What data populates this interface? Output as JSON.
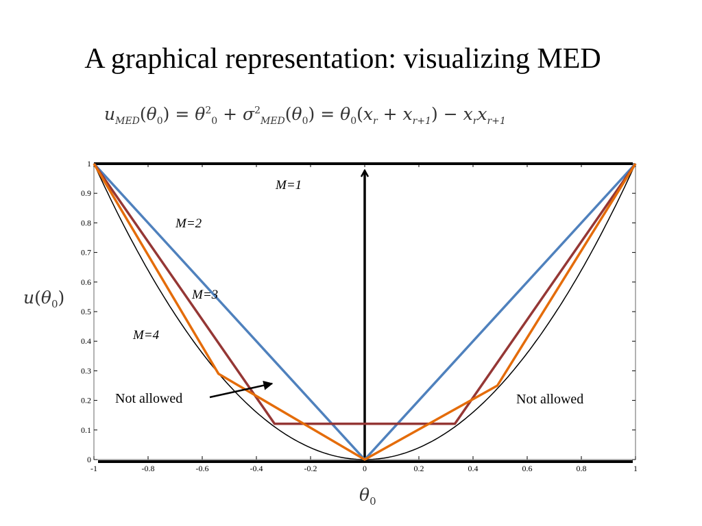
{
  "slide": {
    "title": "A graphical representation: visualizing MED"
  },
  "formula": {
    "lhs_u": "u",
    "lhs_sub": "MED",
    "theta": "θ",
    "zero": "0",
    "sigma": "σ",
    "sq": "2",
    "x": "x",
    "r": "r",
    "r1": "r+1"
  },
  "axes": {
    "ylabel_func": "u",
    "ylabel_theta": "θ",
    "ylabel_sub": "0",
    "xlabel_theta": "θ",
    "xlabel_sub": "0"
  },
  "chart_data": {
    "type": "line",
    "title": "",
    "xlim": [
      -1,
      1
    ],
    "ylim": [
      0,
      1
    ],
    "x_ticks": [
      -1,
      -0.8,
      -0.6,
      -0.4,
      -0.2,
      0,
      0.2,
      0.4,
      0.6,
      0.8,
      1
    ],
    "x_tick_labels": [
      "-1",
      "-0.8",
      "-0.6",
      "-0.4",
      "-0.2",
      "0",
      "0.2",
      "0.4",
      "0.6",
      "0.8",
      "1"
    ],
    "y_ticks": [
      0,
      0.1,
      0.2,
      0.3,
      0.4,
      0.5,
      0.6,
      0.7,
      0.8,
      0.9,
      1
    ],
    "y_tick_labels": [
      "0",
      "0.1",
      "0.2",
      "0.3",
      "0.4",
      "0.5",
      "0.6",
      "0.7",
      "0.8",
      "0.9",
      "1"
    ],
    "grid": false,
    "legend": "none",
    "series": [
      {
        "name": "M=1",
        "color": "#000000",
        "x": [
          0,
          0
        ],
        "y": [
          0,
          1
        ]
      },
      {
        "name": "M=2",
        "color": "#4f81bd",
        "x": [
          -1,
          0,
          1
        ],
        "y": [
          1,
          0,
          1
        ]
      },
      {
        "name": "M=3",
        "color": "#953735",
        "x": [
          -1,
          -0.333,
          0.333,
          1
        ],
        "y": [
          1,
          0.121,
          0.121,
          1
        ]
      },
      {
        "name": "M=4",
        "color": "#e46c0a",
        "x": [
          -1,
          -0.54,
          0,
          0.49,
          1
        ],
        "y": [
          1,
          0.29,
          0,
          0.25,
          1
        ]
      }
    ],
    "annotations": [
      {
        "text": "M=1",
        "series": "M=1"
      },
      {
        "text": "M=2",
        "series": "M=2"
      },
      {
        "text": "M=3",
        "series": "M=3"
      },
      {
        "text": "M=4",
        "series": "M=4"
      },
      {
        "text": "Not allowed",
        "side": "left"
      },
      {
        "text": "Not allowed",
        "side": "right"
      }
    ]
  }
}
